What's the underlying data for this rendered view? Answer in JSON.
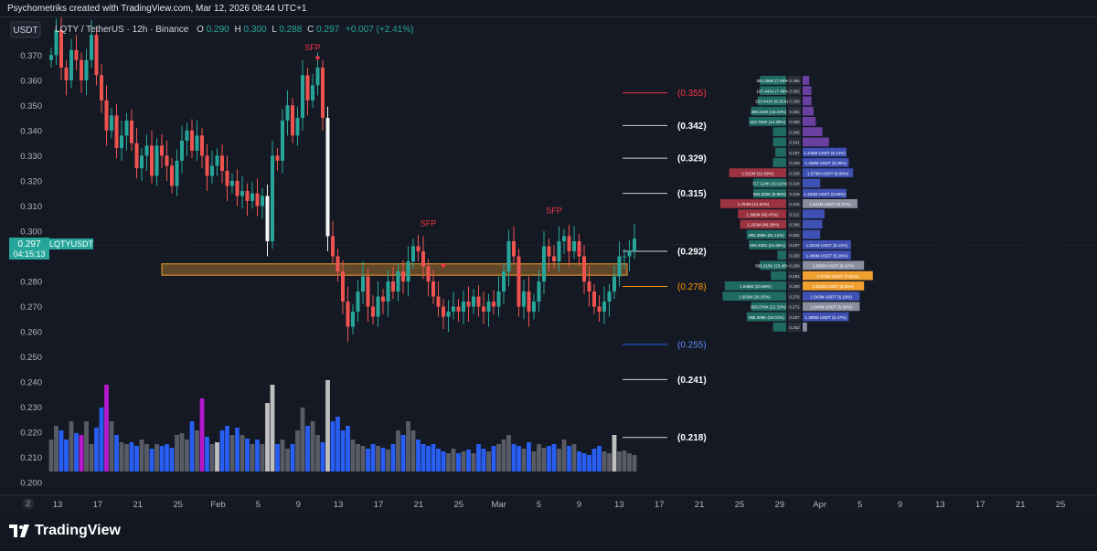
{
  "attribution": "Psychometriks created with TradingView.com, Mar 12, 2026 08:44 UTC+1",
  "currency_label": "USDT",
  "legend": {
    "symbol": "LQTY / TetherUS · 12h · Binance",
    "o_label": "O",
    "o": "0.290",
    "h_label": "H",
    "h": "0.300",
    "l_label": "L",
    "l": "0.288",
    "c_label": "C",
    "c": "0.297",
    "change": "+0.007 (+2.41%)"
  },
  "price_badge": {
    "ticker": "LQTYUSDT",
    "price": "0.297",
    "countdown": "04:15:13"
  },
  "colors": {
    "background": "#151924",
    "up": "#26a69a",
    "down": "#ef5350",
    "grid": "#1e222d",
    "zone": "#f0a030",
    "volume_blue": "#2962ff",
    "volume_gray": "#5d606b",
    "volume_magenta": "#c018d8",
    "volume_white": "#c8c8c8",
    "level_red": "#f23645",
    "level_orange": "#ff9800",
    "level_blue": "#2962ff",
    "level_white": "#d1d4dc"
  },
  "footer": {
    "logo_text": "TradingView",
    "logo_icon": "tradingview-logo-icon",
    "scale_button": "Z"
  },
  "chart_data": {
    "type": "candlestick",
    "interval": "12h",
    "ylim": [
      0.195,
      0.385
    ],
    "y_ticks": [
      "0.370",
      "0.360",
      "0.350",
      "0.340",
      "0.330",
      "0.320",
      "0.310",
      "0.300",
      "0.290",
      "0.280",
      "0.270",
      "0.260",
      "0.250",
      "0.240",
      "0.230",
      "0.220",
      "0.210",
      "0.200"
    ],
    "x_ticks": [
      "13",
      "17",
      "21",
      "25",
      "Feb",
      "5",
      "9",
      "13",
      "17",
      "21",
      "25",
      "Mar",
      "5",
      "9",
      "13",
      "17",
      "21",
      "25",
      "29",
      "Apr",
      "5",
      "9",
      "13",
      "17",
      "21",
      "25"
    ],
    "candle_groups": [
      {
        "from_index": 0,
        "closes": [
          0.37,
          0.38,
          0.365,
          0.36,
          0.372,
          0.368,
          0.36,
          0.368,
          0.378,
          0.362
        ]
      },
      {
        "from_index": 10,
        "closes": [
          0.352,
          0.34,
          0.346,
          0.333,
          0.338,
          0.344,
          0.335,
          0.325,
          0.33,
          0.334
        ]
      },
      {
        "from_index": 20,
        "closes": [
          0.322,
          0.334,
          0.33,
          0.326,
          0.318,
          0.328,
          0.336,
          0.34,
          0.332,
          0.338
        ]
      },
      {
        "from_index": 30,
        "closes": [
          0.33,
          0.322,
          0.326,
          0.33,
          0.324,
          0.318,
          0.32,
          0.314,
          0.316,
          0.312
        ]
      },
      {
        "from_index": 40,
        "closes": [
          0.315,
          0.31,
          0.314,
          0.296,
          0.33,
          0.328,
          0.344,
          0.35,
          0.338,
          0.345
        ]
      },
      {
        "from_index": 50,
        "closes": [
          0.362,
          0.352,
          0.358,
          0.365,
          0.345,
          0.298,
          0.29,
          0.284,
          0.272,
          0.262
        ]
      },
      {
        "from_index": 60,
        "closes": [
          0.268,
          0.276,
          0.282,
          0.27,
          0.266,
          0.274,
          0.272,
          0.28,
          0.276,
          0.284
        ]
      },
      {
        "from_index": 70,
        "closes": [
          0.28,
          0.288,
          0.294,
          0.292,
          0.286,
          0.28,
          0.274,
          0.27,
          0.266,
          0.268
        ]
      },
      {
        "from_index": 80,
        "closes": [
          0.27,
          0.268,
          0.272,
          0.27,
          0.274,
          0.27,
          0.268,
          0.272,
          0.27,
          0.276
        ]
      },
      {
        "from_index": 90,
        "closes": [
          0.284,
          0.296,
          0.29,
          0.27,
          0.276,
          0.268,
          0.272,
          0.28,
          0.294,
          0.29
        ]
      },
      {
        "from_index": 100,
        "closes": [
          0.288,
          0.296,
          0.298,
          0.292,
          0.296,
          0.29,
          0.28,
          0.276,
          0.27,
          0.268
        ]
      },
      {
        "from_index": 110,
        "closes": [
          0.272,
          0.276,
          0.282,
          0.29,
          0.29,
          0.292,
          0.297
        ]
      }
    ],
    "zone": {
      "from_index": 42,
      "low": 0.2825,
      "high": 0.287
    },
    "levels": [
      {
        "label": "(0.355)",
        "value": 0.355,
        "color": "#f23645",
        "text_color": "#f23645"
      },
      {
        "label": "(0.342)",
        "value": 0.342,
        "color": "#d1d4dc",
        "text_color": "#ffffff"
      },
      {
        "label": "(0.329)",
        "value": 0.329,
        "color": "#d1d4dc",
        "text_color": "#ffffff"
      },
      {
        "label": "(0.315)",
        "value": 0.315,
        "color": "#d1d4dc",
        "text_color": "#ffffff"
      },
      {
        "label": "(0.292)",
        "value": 0.292,
        "color": "#d1d4dc",
        "text_color": "#ffffff"
      },
      {
        "label": "(0.278)",
        "value": 0.278,
        "color": "#ff9800",
        "text_color": "#ff9800"
      },
      {
        "label": "(0.255)",
        "value": 0.255,
        "color": "#2962ff",
        "text_color": "#5b8def"
      },
      {
        "label": "(0.241)",
        "value": 0.241,
        "color": "#d1d4dc",
        "text_color": "#ffffff"
      },
      {
        "label": "(0.218)",
        "value": 0.218,
        "color": "#d1d4dc",
        "text_color": "#ffffff"
      }
    ],
    "annotations": [
      {
        "text": "SFP",
        "index": 52,
        "value": 0.372,
        "arrow_index": 53,
        "arrow_value": 0.368
      },
      {
        "text": "SFP",
        "index": 75,
        "value": 0.302,
        "arrow_index": 78,
        "arrow_value": 0.2855
      },
      {
        "text": "SFP",
        "index": 100,
        "value": 0.307,
        "arrow_index": 105,
        "arrow_value": 0.291
      }
    ],
    "volume": [
      {
        "from_index": 0,
        "levels": [
          0.35,
          0.5,
          0.45,
          0.35,
          0.55,
          0.42,
          0.4,
          0.55,
          0.3,
          0.48
        ]
      },
      {
        "from_index": 10,
        "levels": [
          0.7,
          0.95,
          0.55,
          0.4,
          0.32,
          0.3,
          0.32,
          0.28,
          0.35,
          0.3
        ]
      },
      {
        "from_index": 20,
        "levels": [
          0.25,
          0.3,
          0.28,
          0.3,
          0.26,
          0.4,
          0.42,
          0.35,
          0.55,
          0.45
        ]
      },
      {
        "from_index": 30,
        "levels": [
          0.8,
          0.38,
          0.3,
          0.32,
          0.45,
          0.5,
          0.4,
          0.48,
          0.4,
          0.36
        ]
      },
      {
        "from_index": 40,
        "levels": [
          0.3,
          0.35,
          0.3,
          0.75,
          0.95,
          0.3,
          0.35,
          0.25,
          0.3,
          0.45
        ]
      },
      {
        "from_index": 50,
        "levels": [
          0.7,
          0.5,
          0.55,
          0.4,
          0.32,
          1.0,
          0.55,
          0.6,
          0.45,
          0.5
        ]
      },
      {
        "from_index": 60,
        "levels": [
          0.35,
          0.3,
          0.28,
          0.25,
          0.3,
          0.28,
          0.26,
          0.24,
          0.3,
          0.45
        ]
      },
      {
        "from_index": 70,
        "levels": [
          0.4,
          0.55,
          0.45,
          0.35,
          0.3,
          0.28,
          0.3,
          0.25,
          0.22,
          0.2
        ]
      },
      {
        "from_index": 80,
        "levels": [
          0.25,
          0.2,
          0.22,
          0.24,
          0.2,
          0.3,
          0.25,
          0.22,
          0.28,
          0.3
        ]
      },
      {
        "from_index": 90,
        "levels": [
          0.35,
          0.4,
          0.3,
          0.28,
          0.25,
          0.32,
          0.22,
          0.3,
          0.26,
          0.28
        ]
      },
      {
        "from_index": 100,
        "levels": [
          0.3,
          0.25,
          0.35,
          0.28,
          0.3,
          0.22,
          0.2,
          0.18,
          0.25,
          0.28
        ]
      },
      {
        "from_index": 110,
        "levels": [
          0.22,
          0.2,
          0.4,
          0.22,
          0.23,
          0.2,
          0.18
        ]
      }
    ],
    "volume_colors": [
      {
        "index": 6,
        "color": "magenta"
      },
      {
        "index": 11,
        "color": "magenta"
      },
      {
        "index": 30,
        "color": "magenta"
      },
      {
        "index": 33,
        "color": "white"
      },
      {
        "index": 43,
        "color": "white"
      },
      {
        "index": 44,
        "color": "white"
      },
      {
        "index": 55,
        "color": "white"
      },
      {
        "index": 112,
        "color": "white"
      }
    ],
    "order_book": {
      "rows": [
        {
          "price": "0.366",
          "bid": "201.006K (7.60%)",
          "bid_w": 0.12,
          "ask": "",
          "ask_w": 0.03
        },
        {
          "price": "0.363",
          "bid": "197.441K (7.48%)",
          "bid_w": 0.12,
          "ask": "",
          "ask_w": 0.04
        },
        {
          "price": "0.359",
          "bid": "223.441K (9.31%)",
          "bid_w": 0.13,
          "ask": "",
          "ask_w": 0.04
        },
        {
          "price": "0.354",
          "bid": "389.323K (16.23%)",
          "bid_w": 0.16,
          "ask": "",
          "ask_w": 0.05
        },
        {
          "price": "0.350",
          "bid": "424.764K (14.39%)",
          "bid_w": 0.17,
          "ask": "",
          "ask_w": 0.06
        },
        {
          "price": "0.346",
          "bid": "",
          "bid_w": 0.06,
          "ask": "",
          "ask_w": 0.09
        },
        {
          "price": "0.341",
          "bid": "",
          "bid_w": 0.06,
          "ask": "",
          "ask_w": 0.12
        },
        {
          "price": "0.337",
          "bid": "",
          "bid_w": 0.05,
          "ask": "1.445M USDT (8.12%)",
          "ask_w": 0.2
        },
        {
          "price": "0.333",
          "bid": "",
          "bid_w": 0.06,
          "ask": "1.468M USDT (8.29%)",
          "ask_w": 0.21
        },
        {
          "price": "0.328",
          "bid": "1.522M (21.69%)",
          "bid_w": 0.26,
          "ask": "1.573M USDT (8.99%)",
          "ask_w": 0.23
        },
        {
          "price": "0.324",
          "bid": "717.124K (10.22%)",
          "bid_w": 0.15,
          "ask": "",
          "ask_w": 0.08
        },
        {
          "price": "0.319",
          "bid": "692.305K (9.86%)",
          "bid_w": 0.15,
          "ask": "1.453M USDT (8.59%)",
          "ask_w": 0.2
        },
        {
          "price": "0.315",
          "bid": "1.753M (12.93%)",
          "bid_w": 0.3,
          "ask": "1.621M USDT (9.37%)",
          "ask_w": 0.25
        },
        {
          "price": "0.311",
          "bid": "1.395M (45.47%)",
          "bid_w": 0.22,
          "ask": "",
          "ask_w": 0.1
        },
        {
          "price": "0.306",
          "bid": "1.253M (46.28%)",
          "bid_w": 0.21,
          "ask": "",
          "ask_w": 0.09
        },
        {
          "price": "0.302",
          "bid": "991.386K (51.12%)",
          "bid_w": 0.18,
          "ask": "",
          "ask_w": 0.08
        },
        {
          "price": "0.297",
          "bid": "906.405K (54.05%)",
          "bid_w": 0.17,
          "ask": "1.501M USDT (5.13%)",
          "ask_w": 0.22
        },
        {
          "price": "0.293",
          "bid": "",
          "bid_w": 0.04,
          "ask": "1.489M USDT (5.28%)",
          "ask_w": 0.22
        },
        {
          "price": "0.289",
          "bid": "586.315K (23.45%)",
          "bid_w": 0.12,
          "ask": "1.895M USDT (6.42%)",
          "ask_w": 0.28
        },
        {
          "price": "0.284",
          "bid": "",
          "bid_w": 0.07,
          "ask": "2.079M USDT (7.61%)",
          "ask_w": 0.32
        },
        {
          "price": "0.280",
          "bid": "1.548M (23.66%)",
          "bid_w": 0.28,
          "ask": "1.815M USDT (6.85%)",
          "ask_w": 0.28
        },
        {
          "price": "0.276",
          "bid": "1.603M (26.35%)",
          "bid_w": 0.29,
          "ask": "1.643M USDT (6.19%)",
          "ask_w": 0.26
        },
        {
          "price": "0.271",
          "bid": "825.076K (12.33%)",
          "bid_w": 0.16,
          "ask": "1.643M USDT (6.92%)",
          "ask_w": 0.26
        },
        {
          "price": "0.267",
          "bid": "955.309K (18.01%)",
          "bid_w": 0.18,
          "ask": "1.385M USDT (5.47%)",
          "ask_w": 0.21
        },
        {
          "price": "0.262",
          "bid": "",
          "bid_w": 0.06,
          "ask": "",
          "ask_w": 0.02
        }
      ]
    }
  }
}
